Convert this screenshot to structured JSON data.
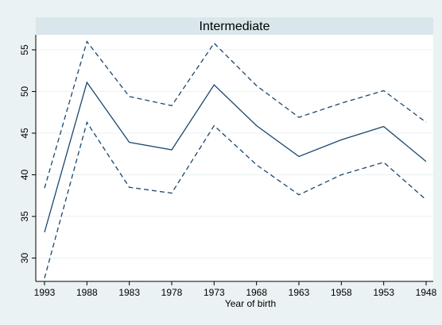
{
  "chart_data": {
    "type": "line",
    "title": "Intermediate",
    "x_label": "Year of birth",
    "categories": [
      "1993",
      "1988",
      "1983",
      "1978",
      "1973",
      "1968",
      "1963",
      "1958",
      "1953",
      "1948"
    ],
    "series": [
      {
        "color": "#1a476f",
        "dash": "solid",
        "values": [
          33.1,
          51.1,
          43.9,
          43.0,
          50.8,
          45.9,
          42.2,
          44.2,
          45.8,
          41.6
        ]
      },
      {
        "color": "#1a476f",
        "dash": "dashed",
        "values": [
          38.4,
          56.0,
          49.4,
          48.3,
          55.8,
          50.7,
          46.9,
          48.6,
          50.1,
          46.3
        ]
      },
      {
        "color": "#1a476f",
        "dash": "dashed",
        "values": [
          27.6,
          46.3,
          38.5,
          37.8,
          45.9,
          41.2,
          37.6,
          40.0,
          41.5,
          37.0
        ]
      }
    ],
    "ylim": [
      27.2,
      56.8
    ],
    "yticks": [
      30,
      35,
      40,
      45,
      50,
      55
    ],
    "grid": true
  }
}
